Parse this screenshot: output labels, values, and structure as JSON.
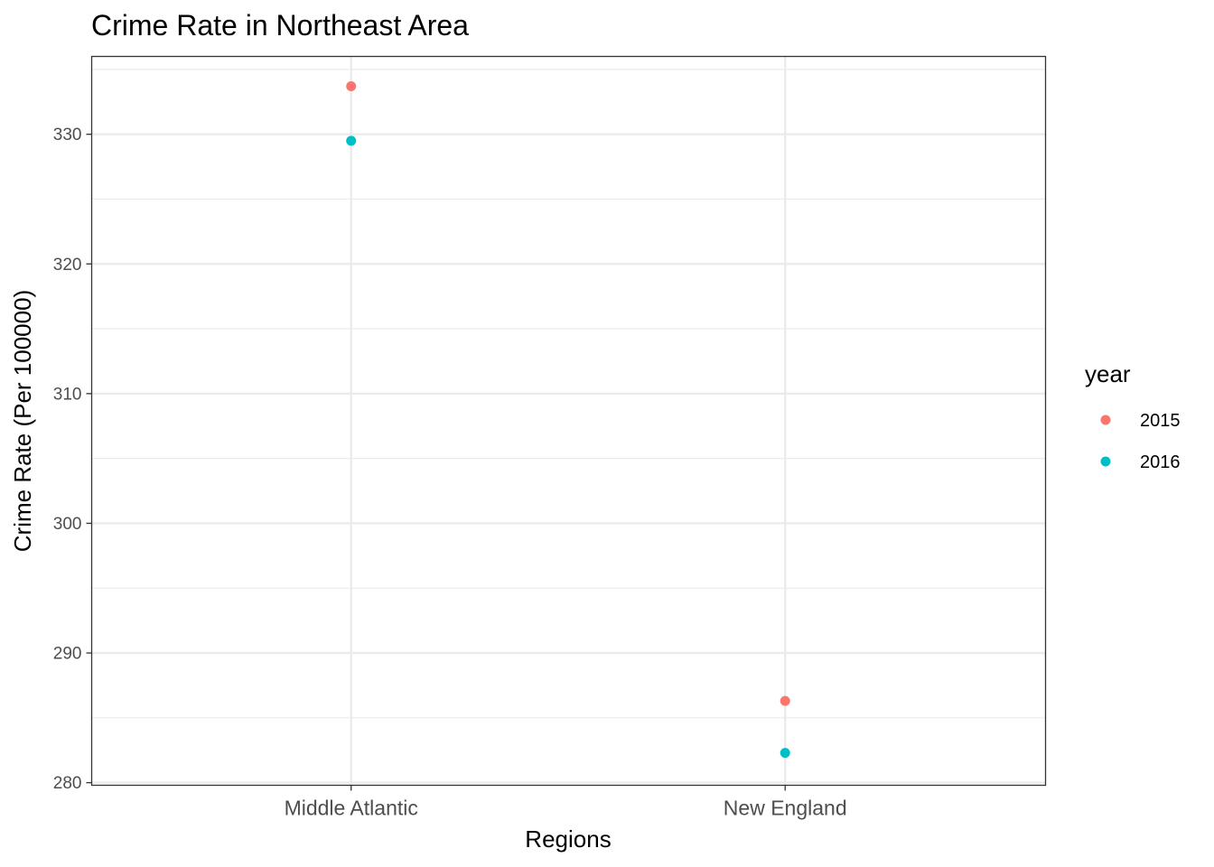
{
  "chart_data": {
    "type": "scatter",
    "title": "Crime Rate in Northeast Area",
    "xlabel": "Regions",
    "ylabel": "Crime Rate (Per 100000)",
    "categories": [
      "Middle Atlantic",
      "New England"
    ],
    "ylim": [
      279.8,
      336
    ],
    "yticks": [
      280,
      290,
      300,
      310,
      320,
      330
    ],
    "grid": true,
    "legend": {
      "title": "year",
      "placement": "right"
    },
    "series": [
      {
        "name": "2015",
        "color": "#F8766D",
        "values": [
          333.7,
          286.3
        ]
      },
      {
        "name": "2016",
        "color": "#00BFC4",
        "values": [
          329.5,
          282.3
        ]
      }
    ]
  }
}
